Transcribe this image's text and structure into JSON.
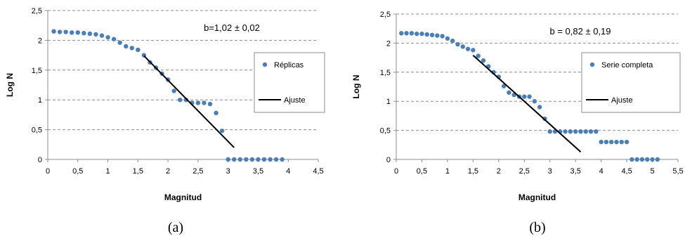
{
  "colors": {
    "points": "#4A7EBB",
    "fit": "#000000",
    "grid": "#8C8C8C",
    "axis": "#8C8C8C"
  },
  "chart_data": [
    {
      "type": "scatter",
      "caption": "(a)",
      "annotation": "b=1,02 ± 0,02",
      "xlabel": "Magnitud",
      "ylabel": "Log N",
      "xlim": [
        0,
        4.5
      ],
      "ylim": [
        0,
        2.5
      ],
      "x_ticks": [
        0,
        0.5,
        1,
        1.5,
        2,
        2.5,
        3,
        3.5,
        4,
        4.5
      ],
      "x_tick_labels": [
        "0",
        "0,5",
        "1",
        "1,5",
        "2",
        "2,5",
        "3",
        "3,5",
        "4",
        "4,5"
      ],
      "y_ticks": [
        0,
        0.5,
        1,
        1.5,
        2,
        2.5
      ],
      "y_tick_labels": [
        "0",
        "0,5",
        "1",
        "1,5",
        "2",
        "2,5"
      ],
      "grid": "horizontal dashed",
      "legend_position": "right",
      "series": [
        {
          "name": "Réplicas",
          "kind": "points",
          "x": [
            0.1,
            0.2,
            0.3,
            0.4,
            0.5,
            0.6,
            0.7,
            0.8,
            0.9,
            1.0,
            1.1,
            1.2,
            1.3,
            1.4,
            1.5,
            1.6,
            1.7,
            1.8,
            1.9,
            2.0,
            2.1,
            2.2,
            2.3,
            2.4,
            2.5,
            2.6,
            2.7,
            2.8,
            2.9,
            3.0,
            3.1,
            3.2,
            3.3,
            3.4,
            3.5,
            3.6,
            3.7,
            3.8,
            3.9
          ],
          "y": [
            2.15,
            2.14,
            2.14,
            2.13,
            2.13,
            2.12,
            2.11,
            2.1,
            2.08,
            2.05,
            2.02,
            1.96,
            1.9,
            1.87,
            1.84,
            1.75,
            1.63,
            1.54,
            1.44,
            1.34,
            1.15,
            1.0,
            1.0,
            0.95,
            0.95,
            0.95,
            0.93,
            0.78,
            0.48,
            0.0,
            0.0,
            0.0,
            0.0,
            0.0,
            0.0,
            0.0,
            0.0,
            0.0,
            0.0
          ]
        },
        {
          "name": "Ajuste",
          "kind": "line",
          "x": [
            1.6,
            3.1
          ],
          "y": [
            1.74,
            0.2
          ]
        }
      ]
    },
    {
      "type": "scatter",
      "caption": "(b)",
      "annotation": "b = 0,82 ± 0,19",
      "xlabel": "Magnitud",
      "ylabel": "Log N",
      "xlim": [
        0,
        5.5
      ],
      "ylim": [
        0,
        2.5
      ],
      "x_ticks": [
        0,
        0.5,
        1,
        1.5,
        2,
        2.5,
        3,
        3.5,
        4,
        4.5,
        5,
        5.5
      ],
      "x_tick_labels": [
        "0",
        "0,5",
        "1",
        "1,5",
        "2",
        "2,5",
        "3",
        "3,5",
        "4",
        "4,5",
        "5",
        "5,5"
      ],
      "y_ticks": [
        0,
        0.5,
        1,
        1.5,
        2,
        2.5
      ],
      "y_tick_labels": [
        "0",
        "0,5",
        "1",
        "1,5",
        "2",
        "2,5"
      ],
      "grid": "horizontal dashed",
      "legend_position": "right",
      "series": [
        {
          "name": "Serie completa",
          "kind": "points",
          "x": [
            0.1,
            0.2,
            0.3,
            0.4,
            0.5,
            0.6,
            0.7,
            0.8,
            0.9,
            1.0,
            1.1,
            1.2,
            1.3,
            1.4,
            1.5,
            1.6,
            1.7,
            1.8,
            1.9,
            2.0,
            2.1,
            2.2,
            2.3,
            2.4,
            2.5,
            2.6,
            2.7,
            2.8,
            2.9,
            3.0,
            3.1,
            3.2,
            3.3,
            3.4,
            3.5,
            3.6,
            3.7,
            3.8,
            3.9,
            4.0,
            4.1,
            4.2,
            4.3,
            4.4,
            4.5,
            4.6,
            4.7,
            4.8,
            4.9,
            5.0,
            5.1
          ],
          "y": [
            2.17,
            2.17,
            2.17,
            2.16,
            2.16,
            2.15,
            2.14,
            2.13,
            2.12,
            2.08,
            2.04,
            1.98,
            1.94,
            1.9,
            1.88,
            1.78,
            1.7,
            1.6,
            1.5,
            1.42,
            1.26,
            1.15,
            1.11,
            1.08,
            1.08,
            1.08,
            1.0,
            0.9,
            0.7,
            0.48,
            0.48,
            0.48,
            0.48,
            0.48,
            0.48,
            0.48,
            0.48,
            0.48,
            0.48,
            0.3,
            0.3,
            0.3,
            0.3,
            0.3,
            0.3,
            0.0,
            0.0,
            0.0,
            0.0,
            0.0,
            0.0
          ]
        },
        {
          "name": "Ajuste",
          "kind": "line",
          "x": [
            1.5,
            3.6
          ],
          "y": [
            1.79,
            0.13
          ]
        }
      ]
    }
  ]
}
